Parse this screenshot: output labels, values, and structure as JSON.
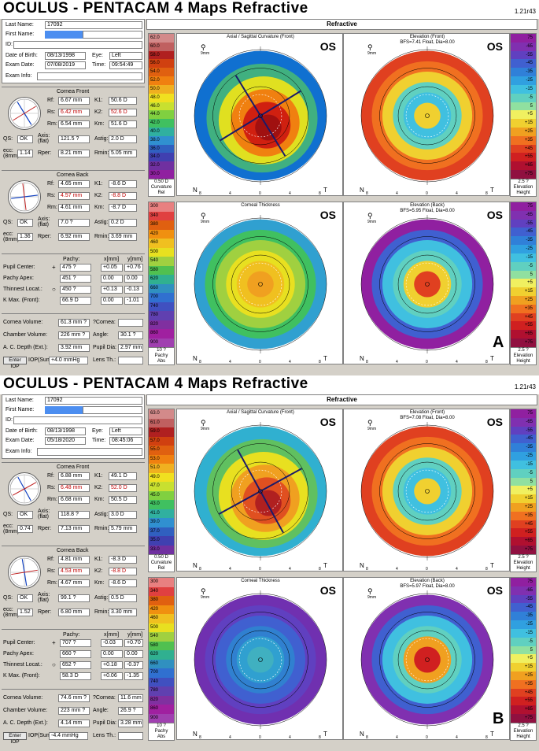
{
  "app": {
    "title": "OCULUS - PENTACAM  4 Maps Refractive",
    "version": "1.21r43",
    "header": "Refractive"
  },
  "labels": {
    "last_name": "Last Name:",
    "first_name": "First Name:",
    "id": "ID:",
    "dob": "Date of Birth:",
    "eye": "Eye:",
    "exam_date": "Exam Date:",
    "time": "Time:",
    "exam_info": "Exam Info:",
    "cornea_front": "Cornea Front",
    "cornea_back": "Cornea Back",
    "rf": "Rf:",
    "rs": "Rs:",
    "rm": "Rm:",
    "k1": "K1:",
    "k2": "K2:",
    "km": "Km:",
    "qs": "QS:",
    "axis": "Axis:",
    "flat": "(flat)",
    "astig": "Astig:",
    "ecc": "ecc:",
    "eightmm": "(8mm)",
    "rper": "Rper:",
    "rmin": "Rmin:",
    "pachy": "Pachy:",
    "x_mm": "x[mm]",
    "y_mm": "y[mm]",
    "pupil_center": "Pupil Center:",
    "pachy_apex": "Pachy Apex:",
    "thinnest_locat": "Thinnest Locat.:",
    "k_max": "K Max. (Front):",
    "cornea_volume": "Cornea Volume:",
    "q_cornea": "?Cornea:",
    "chamber_volume": "Chamber Volume:",
    "angle": "Angle:",
    "ac_depth": "A. C. Depth (Ext.):",
    "pupil_dia": "Pupil Dia:",
    "enter_iop": "Enter IOP",
    "iop_sum": "IOP(Sum):",
    "lens_th": "Lens Th.:",
    "map_axial": "Axial / Sagittal Curvature (Front)",
    "map_elev_front": "Elevation (Front)",
    "map_thickness": "Corneal Thickness",
    "map_elev_back": "Elevation (Back)",
    "os": "OS",
    "n": "N",
    "t": "T",
    "mm9": "9mm",
    "curvature": "Curvature",
    "rel": "Rel",
    "elevation": "Elevation",
    "height": "Height",
    "pachy_lab": "Pachy",
    "abs": "Abs"
  },
  "exams": [
    {
      "letter": "A",
      "last_name": "17092",
      "dob": "08/13/1998",
      "eye": "Left",
      "exam_date": "07/08/2019",
      "time": "09:54:49",
      "front": {
        "rf": "6.67 mm",
        "k1": "50.6 D",
        "rs": "6.42 mm",
        "k2": "52.6 D",
        "rm": "6.54 mm",
        "km": "51.6 D",
        "qs": "OK",
        "axis": "121.5 ?",
        "astig": "2.0 D",
        "ecc": "1.14",
        "rper": "8.21 mm",
        "rmin": "5.05 mm"
      },
      "back": {
        "rf": "4.65 mm",
        "k1": "-8.6 D",
        "rs": "4.57 mm",
        "k2": "-8.8 D",
        "rm": "4.61 mm",
        "km": "-8.7 D",
        "qs": "OK",
        "axis": "7.0 ?",
        "astig": "0.2 D",
        "ecc": "1.36",
        "rper": "6.92 mm",
        "rmin": "3.69 mm"
      },
      "pachy": {
        "pupil_center": [
          "475 ?",
          "+0.05",
          "+0.76"
        ],
        "pachy_apex": [
          "451 ?",
          "0.00",
          "0.00"
        ],
        "thinnest": [
          "450 ?",
          "+0.13",
          "-0.13"
        ],
        "kmax": [
          "66.9 D",
          "0.00",
          "-1.01"
        ]
      },
      "cornea_volume": "61.3 mm ?",
      "q_cornea": "",
      "chamber_volume": "226 mm ?",
      "angle": "30.1 ?",
      "ac_depth": "3.92 mm",
      "pupil_dia": "2.97 mm",
      "iop_sum": "+4.0 mmHg",
      "lens_th": "",
      "bfs_front": "BFS=7.41 Float, Dia=8.00",
      "bfs_back": "BFS=5.95 Float, Dia=8.00",
      "curv_scale": [
        "62.0",
        "60.0",
        "58.0",
        "56.0",
        "54.0",
        "52.0",
        "50.0",
        "48.0",
        "46.0",
        "44.0",
        "42.0",
        "40.0",
        "38.0",
        "36.0",
        "34.0",
        "32.0",
        "30.0"
      ],
      "curv_step": "0.50 D",
      "pachy_scale": [
        "300",
        "340",
        "380",
        "420",
        "460",
        "500",
        "540",
        "580",
        "620",
        "660",
        "700",
        "740",
        "780",
        "820",
        "860",
        "900"
      ],
      "pachy_step": "10 ?",
      "elev_step": "2.5 ?"
    },
    {
      "letter": "B",
      "last_name": "17092",
      "dob": "08/13/1998",
      "eye": "Left",
      "exam_date": "05/18/2020",
      "time": "08:45:06",
      "front": {
        "rf": "6.88 mm",
        "k1": "49.1 D",
        "rs": "6.48 mm",
        "k2": "52.0 D",
        "rm": "6.68 mm",
        "km": "50.5 D",
        "qs": "OK",
        "axis": "118.8 ?",
        "astig": "3.0 D",
        "ecc": "0.74",
        "rper": "7.13 mm",
        "rmin": "5.79 mm"
      },
      "back": {
        "rf": "4.81 mm",
        "k1": "-8.3 D",
        "rs": "4.53 mm",
        "k2": "-8.8 D",
        "rm": "4.67 mm",
        "km": "-8.6 D",
        "qs": "OK",
        "axis": "99.1 ?",
        "astig": "0.5 D",
        "ecc": "1.52",
        "rper": "6.80 mm",
        "rmin": "3.30 mm"
      },
      "pachy": {
        "pupil_center": [
          "707 ?",
          "-0.03",
          "+0.70"
        ],
        "pachy_apex": [
          "660 ?",
          "0.00",
          "0.00"
        ],
        "thinnest": [
          "652 ?",
          "+0.18",
          "-0.37"
        ],
        "kmax": [
          "58.3 D",
          "+0.06",
          "-1.35"
        ]
      },
      "cornea_volume": "74.6 mm ?",
      "q_cornea": "11.6 mm",
      "chamber_volume": "223 mm ?",
      "angle": "26.9 ?",
      "ac_depth": "4.14 mm",
      "pupil_dia": "3.28 mm",
      "iop_sum": "-4.4 mmHg",
      "lens_th": "",
      "bfs_front": "BFS=7.08 Float, Dia=8.00",
      "bfs_back": "BFS=5.97 Float, Dia=8.00",
      "curv_scale": [
        "63.0",
        "61.0",
        "59.0",
        "57.0",
        "55.0",
        "53.0",
        "51.0",
        "49.0",
        "47.0",
        "45.0",
        "43.0",
        "41.0",
        "39.0",
        "37.0",
        "35.0",
        "33.0"
      ],
      "curv_step": "0.50 D",
      "pachy_scale": [
        "300",
        "340",
        "380",
        "420",
        "460",
        "500",
        "540",
        "580",
        "620",
        "660",
        "700",
        "740",
        "780",
        "820",
        "860",
        "900"
      ],
      "pachy_step": "10 ?",
      "elev_step": "2.5 ?"
    }
  ],
  "elev_scale": [
    "75",
    "-65",
    "-55",
    "-45",
    "-35",
    "-25",
    "-15",
    "-5",
    "5",
    "+5",
    "+15",
    "+25",
    "+35",
    "+45",
    "+55",
    "+65",
    "+75"
  ],
  "axis_ticks": [
    "8",
    "4",
    "0",
    "4",
    "8"
  ],
  "colors": {
    "accent_blue": "#4c8ef0",
    "bg": "#d4d0c8"
  }
}
